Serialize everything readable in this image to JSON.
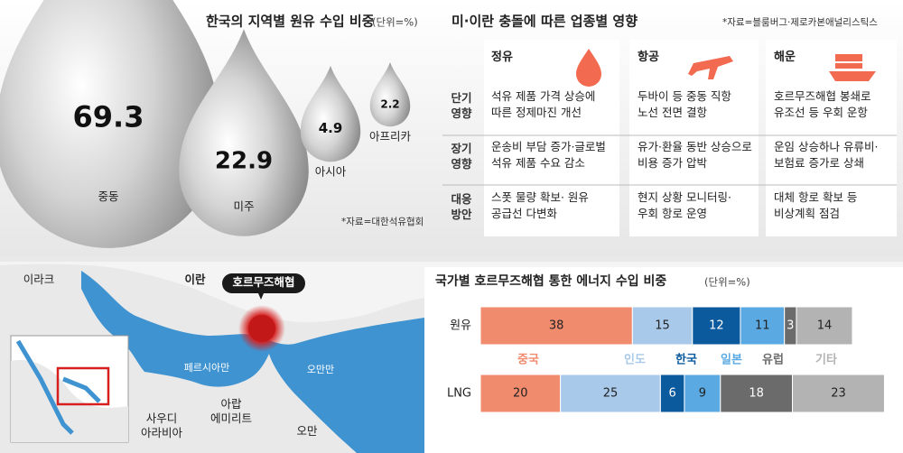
{
  "chart_data": [
    {
      "type": "drop",
      "title": "한국의 지역별 원유 수입 비중",
      "unit": "(단위=%)",
      "source": "*자료=대한석유협회",
      "categories": [
        "중동",
        "미주",
        "아시아",
        "아프리카"
      ],
      "values": [
        69.3,
        22.9,
        4.9,
        2.2
      ]
    },
    {
      "type": "stacked_bar_h",
      "title": "국가별 호르무즈해협 통한 에너지 수입 비중",
      "unit": "(단위=%)",
      "categories": [
        "원유",
        "LNG"
      ],
      "xlim": [
        0,
        100
      ],
      "series": [
        {
          "name": "중국",
          "color": "#f08b6e",
          "values": [
            38,
            20
          ]
        },
        {
          "name": "인도",
          "color": "#a8c9ea",
          "values": [
            15,
            25
          ]
        },
        {
          "name": "한국",
          "color": "#0b5a9e",
          "values": [
            12,
            6
          ]
        },
        {
          "name": "일본",
          "color": "#5aa9e2",
          "values": [
            11,
            9
          ]
        },
        {
          "name": "유럽",
          "color": "#6b6b6b",
          "values": [
            3,
            18
          ]
        },
        {
          "name": "기타",
          "color": "#b3b3b3",
          "values": [
            14,
            23
          ]
        }
      ]
    }
  ],
  "impact": {
    "title": "미·이란 충돌에 따른 업종별 영향",
    "source": "*자료=블룸버그·제로카본애널리스틱스",
    "columns": [
      "정유",
      "항공",
      "해운"
    ],
    "rows": [
      {
        "label": "단기 영향",
        "cells": [
          "석유 제품 가격 상승에 따른 정제마진 개선",
          "두바이 등 중동 직항 노선 전면 결항",
          "호르무즈해협 봉쇄로 유조선 등 우회 운항"
        ]
      },
      {
        "label": "장기 영향",
        "cells": [
          "운송비 부담 증가·글로벌 석유 제품 수요 감소",
          "유가·환율 동반 상승으로 비용 증가 압박",
          "운임 상승하나 유류비·보험료 증가로 상쇄"
        ]
      },
      {
        "label": "대응 방안",
        "cells": [
          "스폿 물량 확보· 원유 공급선 다변화",
          "현지 상황 모니터링· 우회 항로 운영",
          "대체 항로 확보 등 비상계획 점검"
        ]
      }
    ]
  },
  "map": {
    "labels": [
      "이라크",
      "이란",
      "호르무즈해협",
      "페르시아만",
      "오만만",
      "아랍 에미리트",
      "사우디 아라비아",
      "오만"
    ]
  }
}
